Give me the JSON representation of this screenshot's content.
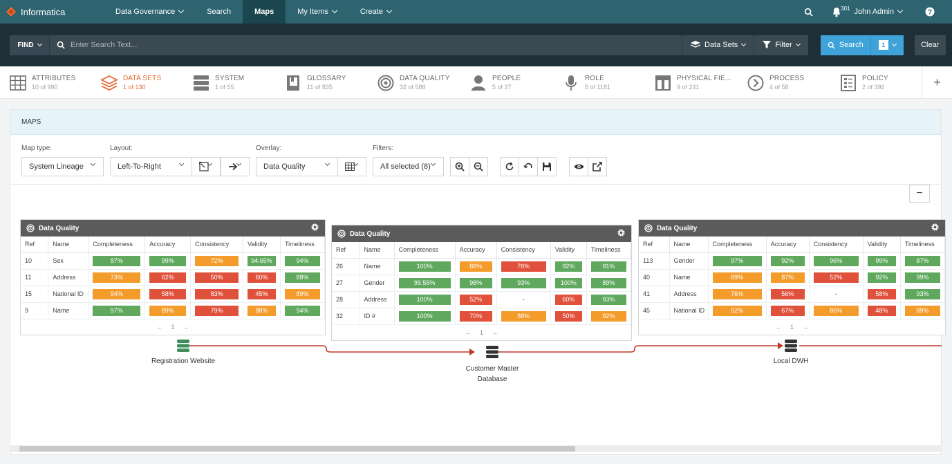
{
  "topnav": {
    "brand": "Informatica",
    "items": [
      {
        "label": "Data Governance",
        "dropdown": true
      },
      {
        "label": "Search",
        "dropdown": false
      },
      {
        "label": "Maps",
        "dropdown": false,
        "active": true
      },
      {
        "label": "My Items",
        "dropdown": true
      },
      {
        "label": "Create",
        "dropdown": true
      }
    ],
    "notification_count": "301",
    "user": "John Admin"
  },
  "findbar": {
    "find_label": "FIND",
    "search_placeholder": "Enter Search Text...",
    "datasets_label": "Data Sets",
    "filter_label": "Filter",
    "search_button": "Search",
    "search_count": "1",
    "clear_button": "Clear"
  },
  "categories": [
    {
      "label": "ATTRIBUTES",
      "count": "10 of 990",
      "icon": "grid-icon"
    },
    {
      "label": "DATA SETS",
      "count": "1 of 130",
      "icon": "layers-icon",
      "active": true
    },
    {
      "label": "SYSTEM",
      "count": "1 of 55",
      "icon": "server-icon"
    },
    {
      "label": "GLOSSARY",
      "count": "11 of 835",
      "icon": "book-icon"
    },
    {
      "label": "DATA QUALITY",
      "count": "32 of 588",
      "icon": "target-icon"
    },
    {
      "label": "PEOPLE",
      "count": "5 of 37",
      "icon": "person-icon"
    },
    {
      "label": "ROLE",
      "count": "5 of 1181",
      "icon": "microphone-icon"
    },
    {
      "label": "PHYSICAL FIE...",
      "count": "9 of 241",
      "icon": "physical-field-icon"
    },
    {
      "label": "PROCESS",
      "count": "4 of 58",
      "icon": "process-icon"
    },
    {
      "label": "POLICY",
      "count": "2 of 392",
      "icon": "policy-icon"
    }
  ],
  "maps": {
    "title": "MAPS",
    "map_type_label": "Map type:",
    "map_type_value": "System Lineage",
    "layout_label": "Layout:",
    "layout_value": "Left-To-Right",
    "overlay_label": "Overlay:",
    "overlay_value": "Data Quality",
    "filters_label": "Filters:",
    "filters_value": "All selected (8)"
  },
  "columns": [
    "Ref",
    "Name",
    "Completeness",
    "Accuracy",
    "Consistency",
    "Validity",
    "Timeliness"
  ],
  "cards": [
    {
      "title": "Data Quality",
      "page": "1",
      "rows": [
        {
          "ref": "10",
          "name": "Sex",
          "vals": [
            [
              "87%",
              "g"
            ],
            [
              "99%",
              "g"
            ],
            [
              "72%",
              "o"
            ],
            [
              "94.65%",
              "g"
            ],
            [
              "94%",
              "g"
            ]
          ]
        },
        {
          "ref": "11",
          "name": "Address",
          "vals": [
            [
              "73%",
              "o"
            ],
            [
              "62%",
              "r"
            ],
            [
              "50%",
              "r"
            ],
            [
              "60%",
              "r"
            ],
            [
              "88%",
              "g"
            ]
          ]
        },
        {
          "ref": "15",
          "name": "National ID",
          "vals": [
            [
              "94%",
              "o"
            ],
            [
              "58%",
              "r"
            ],
            [
              "83%",
              "r"
            ],
            [
              "45%",
              "r"
            ],
            [
              "89%",
              "o"
            ]
          ]
        },
        {
          "ref": "9",
          "name": "Name",
          "vals": [
            [
              "97%",
              "g"
            ],
            [
              "89%",
              "o"
            ],
            [
              "79%",
              "r"
            ],
            [
              "88%",
              "o"
            ],
            [
              "94%",
              "g"
            ]
          ]
        }
      ]
    },
    {
      "title": "Data Quality",
      "page": "1",
      "rows": [
        {
          "ref": "26",
          "name": "Name",
          "vals": [
            [
              "100%",
              "g"
            ],
            [
              "88%",
              "o"
            ],
            [
              "76%",
              "r"
            ],
            [
              "92%",
              "g"
            ],
            [
              "91%",
              "g"
            ]
          ]
        },
        {
          "ref": "27",
          "name": "Gender",
          "vals": [
            [
              "99.55%",
              "g"
            ],
            [
              "98%",
              "g"
            ],
            [
              "93%",
              "g"
            ],
            [
              "100%",
              "g"
            ],
            [
              "89%",
              "g"
            ]
          ]
        },
        {
          "ref": "28",
          "name": "Address",
          "vals": [
            [
              "100%",
              "g"
            ],
            [
              "52%",
              "r"
            ],
            [
              "-",
              ""
            ],
            [
              "60%",
              "r"
            ],
            [
              "93%",
              "g"
            ]
          ]
        },
        {
          "ref": "32",
          "name": "ID #",
          "vals": [
            [
              "100%",
              "g"
            ],
            [
              "70%",
              "r"
            ],
            [
              "88%",
              "o"
            ],
            [
              "50%",
              "r"
            ],
            [
              "92%",
              "o"
            ]
          ]
        }
      ]
    },
    {
      "title": "Data Quality",
      "page": "1",
      "rows": [
        {
          "ref": "113",
          "name": "Gender",
          "vals": [
            [
              "97%",
              "g"
            ],
            [
              "92%",
              "g"
            ],
            [
              "96%",
              "g"
            ],
            [
              "99%",
              "g"
            ],
            [
              "87%",
              "g"
            ]
          ]
        },
        {
          "ref": "40",
          "name": "Name",
          "vals": [
            [
              "89%",
              "o"
            ],
            [
              "87%",
              "o"
            ],
            [
              "52%",
              "r"
            ],
            [
              "92%",
              "g"
            ],
            [
              "99%",
              "g"
            ]
          ]
        },
        {
          "ref": "41",
          "name": "Address",
          "vals": [
            [
              "76%",
              "o"
            ],
            [
              "56%",
              "r"
            ],
            [
              "-",
              ""
            ],
            [
              "58%",
              "r"
            ],
            [
              "93%",
              "g"
            ]
          ]
        },
        {
          "ref": "45",
          "name": "National ID",
          "vals": [
            [
              "92%",
              "o"
            ],
            [
              "67%",
              "r"
            ],
            [
              "86%",
              "o"
            ],
            [
              "48%",
              "r"
            ],
            [
              "89%",
              "o"
            ]
          ]
        }
      ]
    }
  ],
  "nodes": [
    {
      "label": "Registration Website",
      "color": "#3e8e5b"
    },
    {
      "label": "Customer Master Database",
      "color": "#333333"
    },
    {
      "label": "Local DWH",
      "color": "#333333"
    }
  ],
  "colors": {
    "good": "#5fa85d",
    "warn": "#f39c2c",
    "bad": "#e0513b",
    "lineage": "#c0392b",
    "accent": "#e2682f"
  }
}
